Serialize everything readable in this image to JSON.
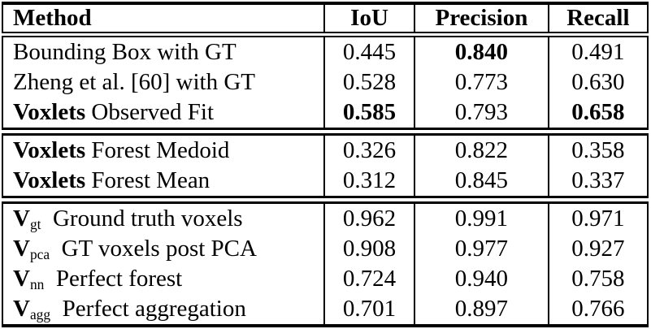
{
  "table": {
    "header": {
      "method": "Method",
      "iou": "IoU",
      "precision": "Precision",
      "recall": "Recall"
    },
    "rows": [
      {
        "method_bold": "",
        "method_sub": "",
        "method_rest": "Bounding Box with GT",
        "iou": "0.445",
        "precision": "0.840",
        "recall": "0.491"
      },
      {
        "method_bold": "",
        "method_sub": "",
        "method_rest": "Zheng et al. [60] with GT",
        "iou": "0.528",
        "precision": "0.773",
        "recall": "0.630"
      },
      {
        "method_bold": "Voxlets",
        "method_sub": "",
        "method_rest": " Observed Fit",
        "iou": "0.585",
        "precision": "0.793",
        "recall": "0.658"
      },
      {
        "method_bold": "Voxlets",
        "method_sub": "",
        "method_rest": " Forest Medoid",
        "iou": "0.326",
        "precision": "0.822",
        "recall": "0.358"
      },
      {
        "method_bold": "Voxlets",
        "method_sub": "",
        "method_rest": " Forest Mean",
        "iou": "0.312",
        "precision": "0.845",
        "recall": "0.337"
      },
      {
        "method_bold": "V",
        "method_sub": "gt",
        "method_rest": "  Ground truth voxels",
        "iou": "0.962",
        "precision": "0.991",
        "recall": "0.971"
      },
      {
        "method_bold": "V",
        "method_sub": "pca",
        "method_rest": "  GT voxels post PCA",
        "iou": "0.908",
        "precision": "0.977",
        "recall": "0.927"
      },
      {
        "method_bold": "V",
        "method_sub": "nn",
        "method_rest": "  Perfect forest",
        "iou": "0.724",
        "precision": "0.940",
        "recall": "0.758"
      },
      {
        "method_bold": "V",
        "method_sub": "agg",
        "method_rest": "  Perfect aggregation",
        "iou": "0.701",
        "precision": "0.897",
        "recall": "0.766"
      }
    ],
    "text_color": "#000000",
    "border_color": "#000000",
    "background_color": "#ffffff"
  }
}
